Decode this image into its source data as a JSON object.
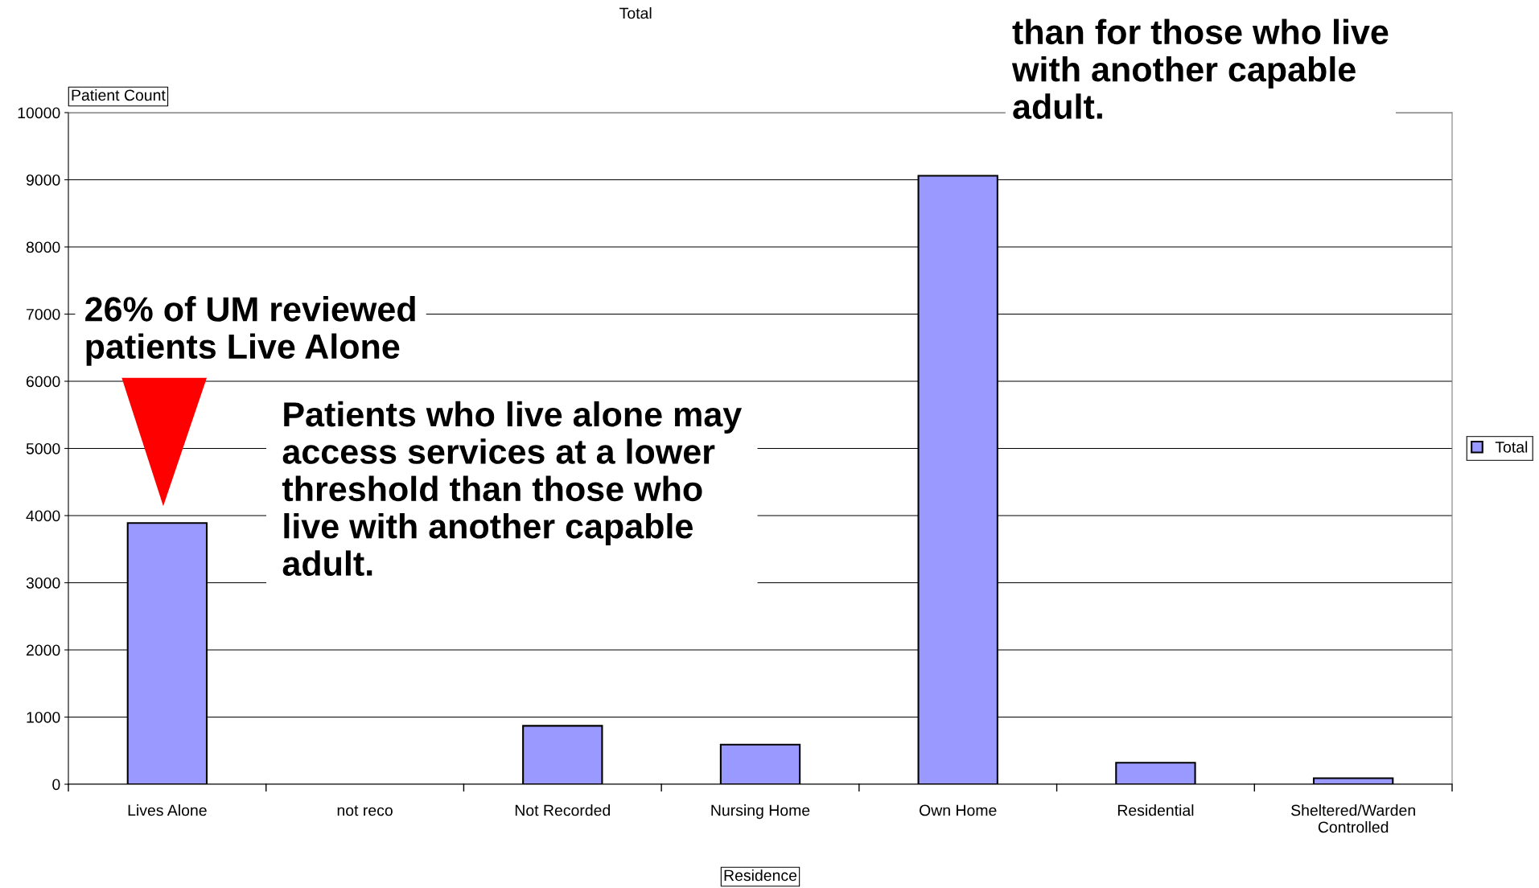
{
  "chart_data": {
    "type": "bar",
    "title": "Total",
    "xlabel": "Residence",
    "ylabel": "Patient Count",
    "categories": [
      "Lives Alone",
      "not reco",
      "Not Recorded",
      "Nursing Home",
      "Own Home",
      "Residential",
      "Sheltered/Warden\nControlled"
    ],
    "series": [
      {
        "name": "Total",
        "color": "#9999ff",
        "values": [
          3890,
          0,
          870,
          590,
          9060,
          320,
          90
        ]
      }
    ],
    "ylim": [
      0,
      10000
    ],
    "yticks": [
      0,
      1000,
      2000,
      3000,
      4000,
      5000,
      6000,
      7000,
      8000,
      9000,
      10000
    ],
    "grid": "y",
    "legend": "right",
    "annotations": [
      "26% of UM reviewed\npatients Live Alone",
      "Patients who live alone may\naccess services at a lower\nthreshold than those who\nlive with another capable\nadult.",
      "than for those who live\nwith another capable\nadult."
    ]
  }
}
